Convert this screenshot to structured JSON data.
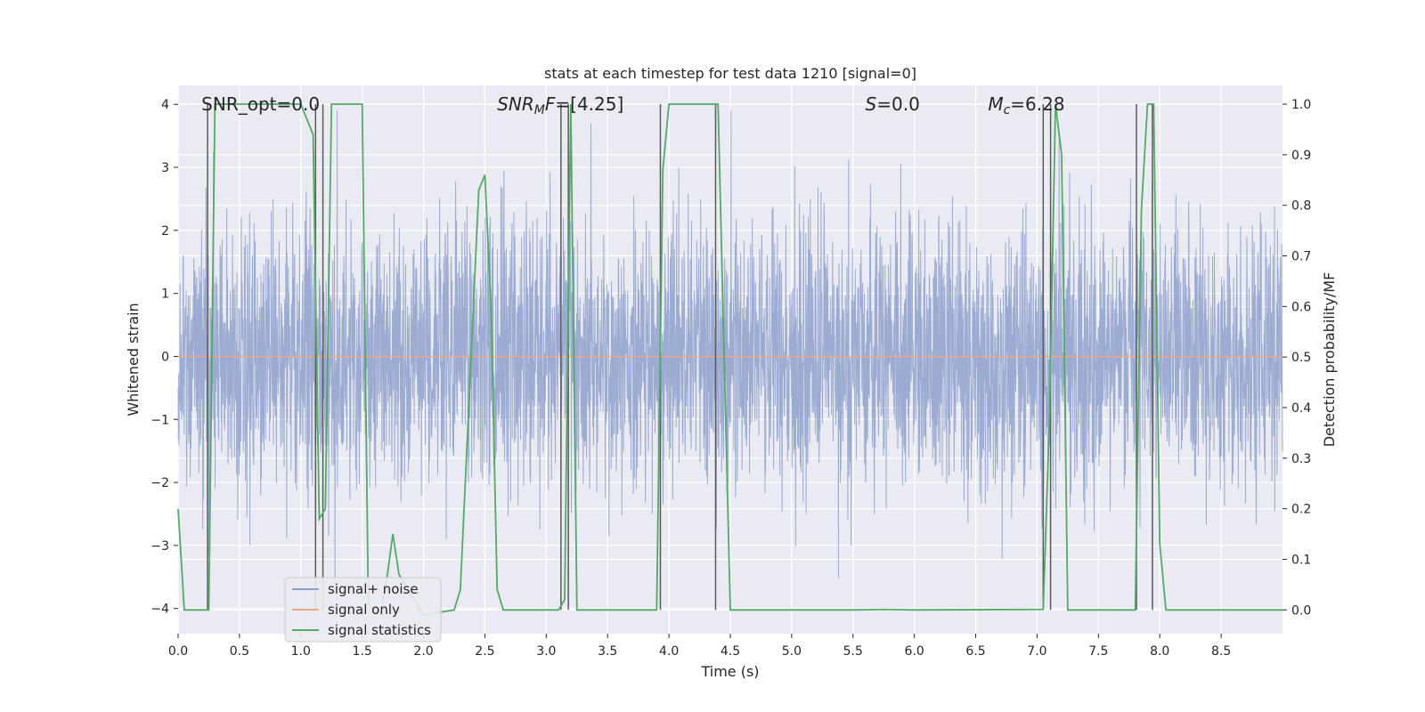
{
  "chart_data": {
    "type": "line",
    "title": "stats at each timestep for test data 1210 [signal=0]",
    "xlabel": "Time (s)",
    "ylabel": "Whitened strain",
    "y2label": "Detection probability/MF",
    "xlim": [
      0.0,
      9.0
    ],
    "ylim": [
      -4.4,
      4.3
    ],
    "y2lim": [
      -0.047,
      1.037
    ],
    "xticks": [
      "0.0",
      "0.5",
      "1.0",
      "1.5",
      "2.0",
      "2.5",
      "3.0",
      "3.5",
      "4.0",
      "4.5",
      "5.0",
      "5.5",
      "6.0",
      "6.5",
      "7.0",
      "7.5",
      "8.0",
      "8.5"
    ],
    "xtick_values": [
      0.0,
      0.5,
      1.0,
      1.5,
      2.0,
      2.5,
      3.0,
      3.5,
      4.0,
      4.5,
      5.0,
      5.5,
      6.0,
      6.5,
      7.0,
      7.5,
      8.0,
      8.5
    ],
    "yticks": [
      "−4",
      "−3",
      "−2",
      "−1",
      "0",
      "1",
      "2",
      "3",
      "4"
    ],
    "ytick_values": [
      -4,
      -3,
      -2,
      -1,
      0,
      1,
      2,
      3,
      4
    ],
    "y2ticks": [
      "0.0",
      "0.1",
      "0.2",
      "0.3",
      "0.4",
      "0.5",
      "0.6",
      "0.7",
      "0.8",
      "0.9",
      "1.0"
    ],
    "y2tick_values": [
      0.0,
      0.1,
      0.2,
      0.3,
      0.4,
      0.5,
      0.6,
      0.7,
      0.8,
      0.9,
      1.0
    ],
    "annotations": [
      {
        "name": "snr-opt",
        "text": "SNR_opt=0.0",
        "x": 0.19,
        "y": 4.0
      },
      {
        "name": "snr-mf",
        "text": "SNRMF=[4.25]",
        "x": 2.6,
        "y": 4.0
      },
      {
        "name": "s-stat",
        "text": "S=0.0",
        "x": 5.6,
        "y": 4.0
      },
      {
        "name": "chirp-mass",
        "text": "Mc=6.28",
        "x": 6.6,
        "y": 4.0
      }
    ],
    "series": [
      {
        "name": "signal+ noise",
        "axis": "left",
        "color": "#8da0cb",
        "core_band": [
          -1.5,
          1.5
        ],
        "typical_peak": 2.3,
        "max_peak": 3.9,
        "min_trough": -3.9,
        "samples": 4000
      },
      {
        "name": "signal only",
        "axis": "left",
        "color": "#e9a88c",
        "x": [
          0.0,
          9.0
        ],
        "y": [
          0.0,
          0.0
        ]
      },
      {
        "name": "signal statistics",
        "axis": "right",
        "color": "#55a868",
        "x": [
          0.0,
          0.05,
          0.25,
          0.3,
          1.0,
          1.05,
          1.1,
          1.15,
          1.2,
          1.25,
          1.5,
          1.55,
          1.65,
          1.7,
          1.75,
          1.8,
          2.0,
          2.25,
          2.3,
          2.45,
          2.5,
          2.55,
          2.6,
          2.65,
          3.1,
          3.15,
          3.2,
          3.25,
          3.9,
          3.95,
          4.0,
          4.4,
          4.5,
          5.5,
          5.75,
          6.0,
          7.05,
          7.1,
          7.15,
          7.2,
          7.25,
          7.8,
          7.85,
          7.9,
          7.95,
          8.0,
          8.05,
          9.0
        ],
        "y": [
          0.2,
          0.0,
          0.0,
          1.0,
          1.0,
          0.97,
          0.94,
          0.18,
          0.2,
          1.0,
          1.0,
          0.01,
          -0.01,
          0.06,
          0.15,
          0.07,
          -0.01,
          0.0,
          0.04,
          0.83,
          0.86,
          0.6,
          0.04,
          0.0,
          0.0,
          0.02,
          1.0,
          0.0,
          0.0,
          0.87,
          1.0,
          1.0,
          0.0,
          0.0,
          0.001,
          0.0,
          0.001,
          0.37,
          1.0,
          0.9,
          0.0,
          0.0,
          0.79,
          1.0,
          1.0,
          0.13,
          0.0,
          0.0
        ]
      }
    ],
    "vertical_markers": [
      0.24,
      1.12,
      1.18,
      3.12,
      3.18,
      3.93,
      4.38,
      7.05,
      7.11,
      7.81,
      7.94
    ],
    "marker_y_range": [
      0.0,
      1.0
    ],
    "legend": {
      "placement": "lower-left",
      "entries": [
        "signal+ noise",
        "signal only",
        "signal statistics"
      ]
    },
    "grid": true
  },
  "colors": {
    "axes_background": "#eaeaf2",
    "grid": "#ffffff",
    "marker": "#595959",
    "text": "#262626"
  }
}
